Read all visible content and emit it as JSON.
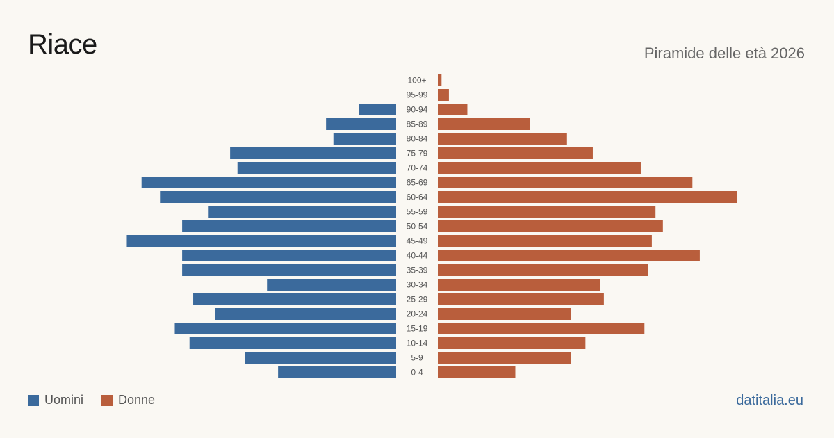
{
  "header": {
    "title": "Riace",
    "subtitle": "Piramide delle età 2026"
  },
  "footer": {
    "source": "datitalia.eu"
  },
  "colors": {
    "men": "#3b6a9c",
    "women": "#b95e3c",
    "background": "#faf8f3"
  },
  "chart_data": {
    "type": "bar",
    "orientation": "horizontal-pyramid",
    "categories": [
      "100+",
      "95-99",
      "90-94",
      "85-89",
      "80-84",
      "75-79",
      "70-74",
      "65-69",
      "60-64",
      "55-59",
      "50-54",
      "45-49",
      "40-44",
      "35-39",
      "30-34",
      "25-29",
      "20-24",
      "15-19",
      "10-14",
      "5-9",
      "0-4"
    ],
    "series": [
      {
        "name": "Uomini",
        "values": [
          0,
          0,
          10,
          19,
          17,
          45,
          43,
          69,
          64,
          51,
          58,
          73,
          58,
          58,
          35,
          55,
          49,
          60,
          56,
          41,
          32
        ]
      },
      {
        "name": "Donne",
        "values": [
          1,
          3,
          8,
          25,
          35,
          42,
          55,
          69,
          81,
          59,
          61,
          58,
          71,
          57,
          44,
          45,
          36,
          56,
          40,
          36,
          21
        ]
      }
    ],
    "legend": "bottom-left",
    "grid": false
  }
}
